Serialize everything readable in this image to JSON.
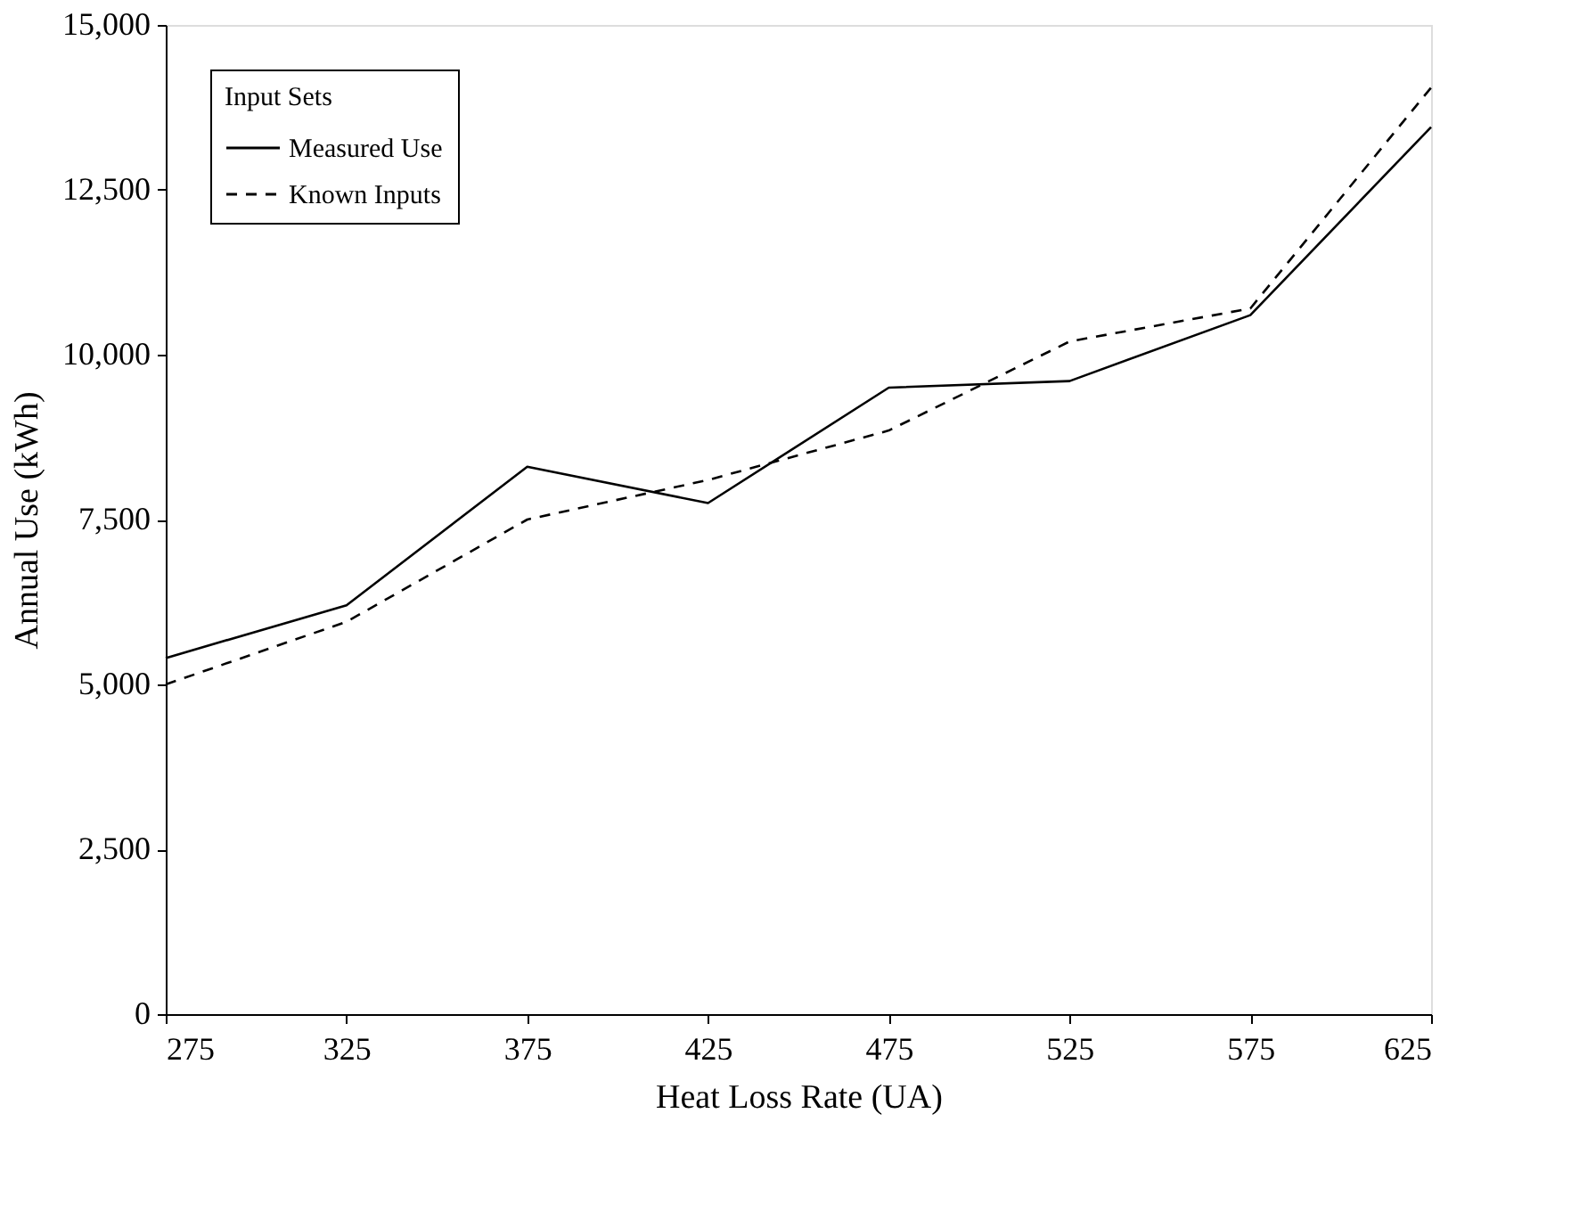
{
  "chart_data": {
    "type": "line",
    "xlabel": "Heat Loss Rate (UA)",
    "ylabel": "Annual Use (kWh)",
    "legend_title": "Input Sets",
    "x": [
      275,
      325,
      375,
      425,
      475,
      525,
      575,
      625
    ],
    "series": [
      {
        "name": "Measured Use",
        "color": "#000000",
        "line_style": "solid",
        "values": [
          5400,
          6200,
          8300,
          7750,
          9500,
          9600,
          10600,
          13450
        ]
      },
      {
        "name": "Known Inputs",
        "color": "#000000",
        "line_style": "dashed",
        "values": [
          5000,
          5950,
          7500,
          8100,
          8850,
          10200,
          10700,
          14050
        ]
      }
    ],
    "xlim": [
      275,
      625
    ],
    "xticks": [
      275,
      325,
      375,
      425,
      475,
      525,
      575,
      625
    ],
    "ylim": [
      0,
      15000
    ],
    "yticks": [
      {
        "value": 0,
        "label": "0"
      },
      {
        "value": 2500,
        "label": "2,500"
      },
      {
        "value": 5000,
        "label": "5,000"
      },
      {
        "value": 7500,
        "label": "7,500"
      },
      {
        "value": 10000,
        "label": "10,000"
      },
      {
        "value": 12500,
        "label": "12,500"
      },
      {
        "value": 15000,
        "label": "15,000"
      }
    ],
    "grid": false,
    "legend": "top left",
    "marker": "none"
  }
}
